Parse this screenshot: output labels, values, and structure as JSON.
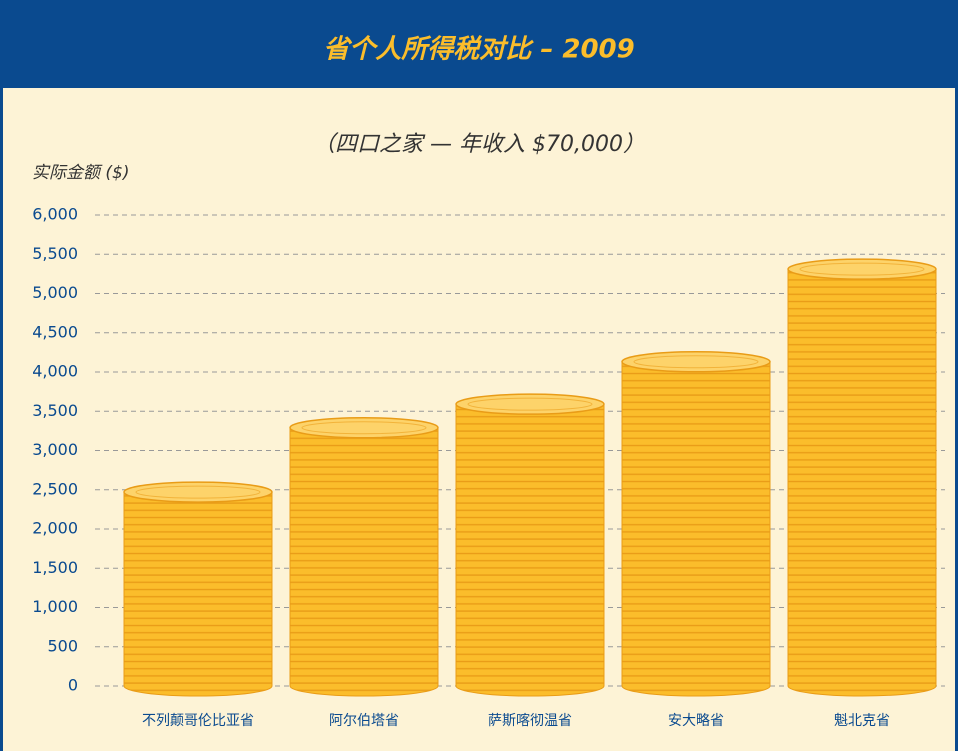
{
  "chart_data": {
    "type": "bar",
    "title": "省个人所得税对比 – 2009",
    "subtitle": "（四口之家 — 年收入 $70,000）",
    "y_label": "实际金额 ($)",
    "categories": [
      "不列颠哥伦比亚省",
      "阿尔伯塔省",
      "萨斯喀彻温省",
      "安大略省",
      "魁北克省"
    ],
    "values": [
      2470,
      3290,
      3590,
      4130,
      5310
    ],
    "color": "#fbbd2b",
    "ylim": [
      0,
      6000
    ],
    "yticks": [
      0,
      500,
      {
        "value": 1000,
        "label": "1,000"
      },
      {
        "value": 1500,
        "label": "1,500"
      },
      {
        "value": 2000,
        "label": "2,000"
      },
      {
        "value": 2500,
        "label": "2,500"
      },
      {
        "value": 3000,
        "label": "3,000"
      },
      {
        "value": 3500,
        "label": "3,500"
      },
      {
        "value": 4000,
        "label": "4,000"
      },
      {
        "value": 4500,
        "label": "4,500"
      },
      {
        "value": 5000,
        "label": "5,000"
      },
      {
        "value": 5500,
        "label": "5,500"
      },
      {
        "value": 6000,
        "label": "6,000"
      }
    ],
    "grid": true
  }
}
